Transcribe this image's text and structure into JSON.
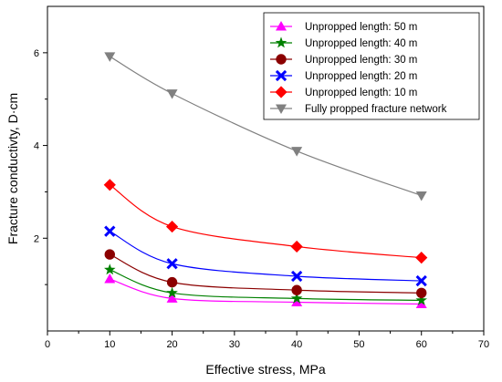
{
  "chart_data": {
    "type": "line",
    "title": "",
    "xlabel": "Effective stress, MPa",
    "ylabel": "Fracture conductivty, D·cm",
    "xlim": [
      0,
      70
    ],
    "ylim": [
      0,
      7
    ],
    "x_ticks": [
      0,
      10,
      20,
      30,
      40,
      50,
      60,
      70
    ],
    "y_ticks": [
      2,
      4,
      6
    ],
    "grid": false,
    "legend_position": "top-right",
    "series": [
      {
        "name": "Unpropped length: 50 m",
        "color": "#ff00ff",
        "marker": "triangle-up",
        "x": [
          10,
          20,
          40,
          60
        ],
        "y": [
          1.12,
          0.7,
          0.62,
          0.58
        ]
      },
      {
        "name": "Unpropped length: 40 m",
        "color": "#008000",
        "marker": "star",
        "x": [
          10,
          20,
          40,
          60
        ],
        "y": [
          1.32,
          0.82,
          0.7,
          0.66
        ]
      },
      {
        "name": "Unpropped length: 30 m",
        "color": "#8b0000",
        "marker": "circle",
        "x": [
          10,
          20,
          40,
          60
        ],
        "y": [
          1.65,
          1.05,
          0.88,
          0.82
        ]
      },
      {
        "name": "Unpropped length: 20 m",
        "color": "#0000ff",
        "marker": "x",
        "x": [
          10,
          20,
          40,
          60
        ],
        "y": [
          2.15,
          1.45,
          1.18,
          1.08
        ]
      },
      {
        "name": "Unpropped length: 10 m",
        "color": "#ff0000",
        "marker": "diamond",
        "x": [
          10,
          20,
          40,
          60
        ],
        "y": [
          3.15,
          2.25,
          1.82,
          1.58
        ]
      },
      {
        "name": "Fully propped fracture network",
        "color": "#808080",
        "marker": "triangle-down",
        "x": [
          10,
          20,
          40,
          60
        ],
        "y": [
          5.92,
          5.12,
          3.88,
          2.92
        ]
      }
    ]
  }
}
